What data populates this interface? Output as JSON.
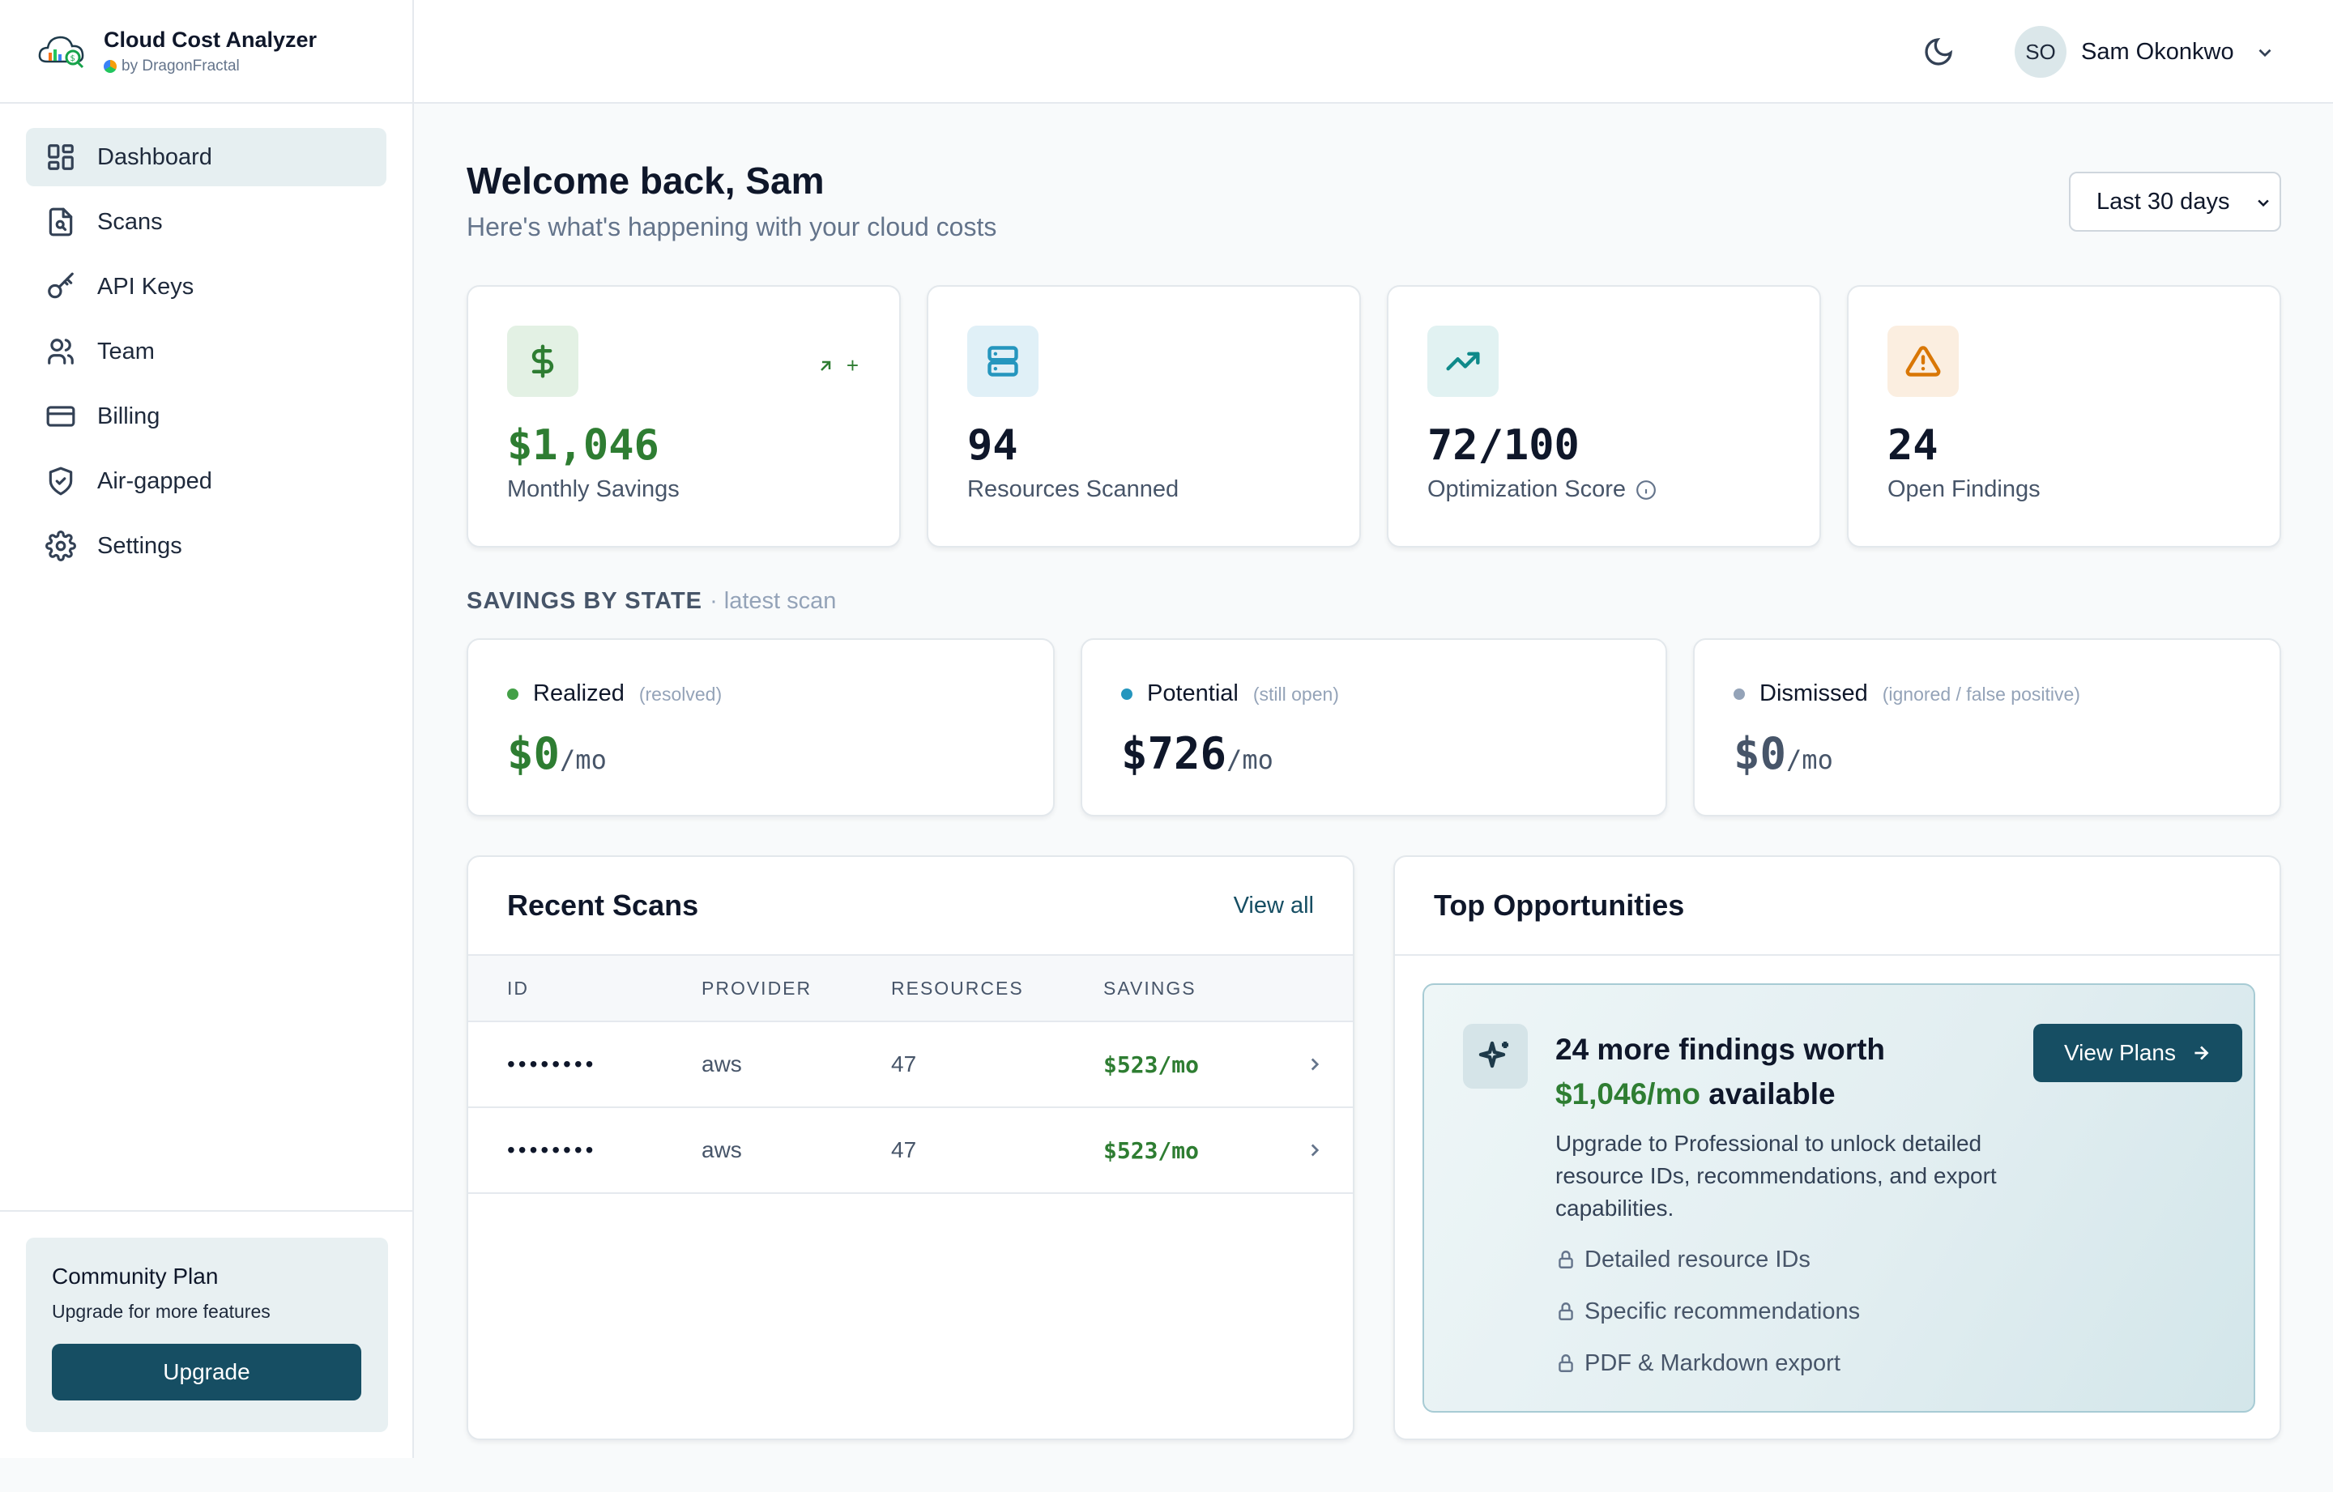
{
  "app": {
    "title": "Cloud Cost Analyzer",
    "byline": "by DragonFractal"
  },
  "sidebar": {
    "items": [
      {
        "label": "Dashboard",
        "icon": "dashboard-icon",
        "active": true
      },
      {
        "label": "Scans",
        "icon": "document-scan-icon"
      },
      {
        "label": "API Keys",
        "icon": "key-icon"
      },
      {
        "label": "Team",
        "icon": "users-icon"
      },
      {
        "label": "Billing",
        "icon": "credit-card-icon"
      },
      {
        "label": "Air-gapped",
        "icon": "shield-check-icon"
      },
      {
        "label": "Settings",
        "icon": "gear-icon"
      }
    ],
    "plan": {
      "title": "Community Plan",
      "subtitle": "Upgrade for more features",
      "button": "Upgrade"
    }
  },
  "header": {
    "user_initials": "SO",
    "user_name": "Sam Okonkwo"
  },
  "main": {
    "welcome": "Welcome back, Sam",
    "subtitle": "Here's what's happening with your cloud costs",
    "range": "Last 30 days",
    "stats": [
      {
        "value": "$1,046",
        "label": "Monthly Savings",
        "icon": "dollar-icon",
        "trend": "+"
      },
      {
        "value": "94",
        "label": "Resources Scanned",
        "icon": "server-icon"
      },
      {
        "value": "72/100",
        "label": "Optimization Score",
        "icon": "trending-up-icon"
      },
      {
        "value": "24",
        "label": "Open Findings",
        "icon": "warning-icon"
      }
    ],
    "savings_section": {
      "title": "SAVINGS BY STATE",
      "note": "· latest scan"
    },
    "states": [
      {
        "name": "Realized",
        "hint": "(resolved)",
        "value": "$0",
        "unit": "/mo",
        "color": "#43a047"
      },
      {
        "name": "Potential",
        "hint": "(still open)",
        "value": "$726",
        "unit": "/mo",
        "color": "#2596be"
      },
      {
        "name": "Dismissed",
        "hint": "(ignored / false positive)",
        "value": "$0",
        "unit": "/mo",
        "color": "#94a3b8"
      }
    ],
    "recent_scans": {
      "title": "Recent Scans",
      "view_all": "View all",
      "columns": [
        "ID",
        "PROVIDER",
        "RESOURCES",
        "SAVINGS"
      ],
      "rows": [
        {
          "id": "••••••••",
          "provider": "aws",
          "resources": "47",
          "savings": "$523/mo"
        },
        {
          "id": "••••••••",
          "provider": "aws",
          "resources": "47",
          "savings": "$523/mo"
        }
      ]
    },
    "opportunities": {
      "title": "Top Opportunities",
      "headline_a": "24 more findings worth",
      "headline_amount": "$1,046/mo",
      "headline_b": "available",
      "description": "Upgrade to Professional to unlock detailed resource IDs, recommendations, and export capabilities.",
      "features": [
        "Detailed resource IDs",
        "Specific recommendations",
        "PDF & Markdown export"
      ],
      "button": "View Plans"
    }
  },
  "colors": {
    "accent": "#164e63",
    "savings_green": "#2e7d32"
  }
}
